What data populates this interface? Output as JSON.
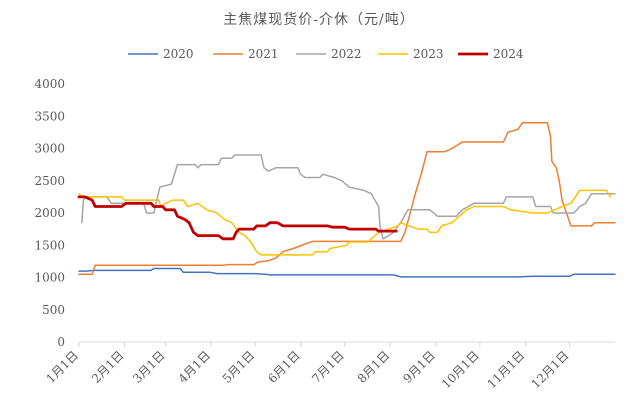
{
  "chart_data": {
    "type": "line",
    "title": "主焦煤现货价-介休（元/吨）",
    "xlabel": "",
    "ylabel": "",
    "ylim": [
      0,
      4000
    ],
    "yticks": [
      "0",
      "500",
      "1000",
      "1500",
      "2000",
      "2500",
      "3000",
      "3500",
      "4000"
    ],
    "x_domain": [
      1,
      366
    ],
    "xticks": [
      {
        "label": "1月1日",
        "day": 1
      },
      {
        "label": "2月1日",
        "day": 32
      },
      {
        "label": "3月1日",
        "day": 60
      },
      {
        "label": "4月1日",
        "day": 91
      },
      {
        "label": "5月1日",
        "day": 121
      },
      {
        "label": "6月1日",
        "day": 152
      },
      {
        "label": "7月1日",
        "day": 182
      },
      {
        "label": "8月1日",
        "day": 213
      },
      {
        "label": "9月1日",
        "day": 244
      },
      {
        "label": "10月1日",
        "day": 274
      },
      {
        "label": "11月1日",
        "day": 305
      },
      {
        "label": "12月1日",
        "day": 335
      }
    ],
    "grid": false,
    "legend": "top",
    "series": [
      {
        "name": "2020",
        "color": "#4472c4",
        "width": 1.5,
        "points": [
          [
            1,
            1100
          ],
          [
            5,
            1100
          ],
          [
            12,
            1110
          ],
          [
            50,
            1110
          ],
          [
            52,
            1140
          ],
          [
            70,
            1140
          ],
          [
            72,
            1080
          ],
          [
            90,
            1080
          ],
          [
            95,
            1060
          ],
          [
            120,
            1060
          ],
          [
            128,
            1050
          ],
          [
            131,
            1040
          ],
          [
            200,
            1040
          ],
          [
            215,
            1040
          ],
          [
            220,
            1010
          ],
          [
            300,
            1010
          ],
          [
            310,
            1020
          ],
          [
            335,
            1020
          ],
          [
            338,
            1050
          ],
          [
            366,
            1050
          ]
        ]
      },
      {
        "name": "2021",
        "color": "#ed7d31",
        "width": 1.5,
        "points": [
          [
            1,
            1050
          ],
          [
            10,
            1050
          ],
          [
            12,
            1190
          ],
          [
            100,
            1190
          ],
          [
            102,
            1200
          ],
          [
            120,
            1200
          ],
          [
            123,
            1240
          ],
          [
            130,
            1260
          ],
          [
            135,
            1300
          ],
          [
            140,
            1400
          ],
          [
            147,
            1450
          ],
          [
            155,
            1520
          ],
          [
            160,
            1560
          ],
          [
            220,
            1560
          ],
          [
            223,
            1700
          ],
          [
            226,
            1950
          ],
          [
            230,
            2300
          ],
          [
            234,
            2600
          ],
          [
            238,
            2950
          ],
          [
            250,
            2950
          ],
          [
            255,
            3000
          ],
          [
            262,
            3100
          ],
          [
            290,
            3100
          ],
          [
            293,
            3250
          ],
          [
            300,
            3300
          ],
          [
            303,
            3400
          ],
          [
            320,
            3400
          ],
          [
            322,
            3200
          ],
          [
            323,
            2800
          ],
          [
            326,
            2700
          ],
          [
            328,
            2500
          ],
          [
            330,
            2200
          ],
          [
            333,
            2000
          ],
          [
            336,
            1800
          ],
          [
            350,
            1800
          ],
          [
            352,
            1850
          ],
          [
            366,
            1850
          ]
        ]
      },
      {
        "name": "2022",
        "color": "#a5a5a5",
        "width": 1.5,
        "points": [
          [
            3,
            1850
          ],
          [
            4,
            2200
          ],
          [
            6,
            2250
          ],
          [
            20,
            2250
          ],
          [
            23,
            2150
          ],
          [
            45,
            2150
          ],
          [
            47,
            2000
          ],
          [
            52,
            2000
          ],
          [
            54,
            2200
          ],
          [
            56,
            2400
          ],
          [
            64,
            2450
          ],
          [
            68,
            2750
          ],
          [
            80,
            2750
          ],
          [
            82,
            2700
          ],
          [
            84,
            2750
          ],
          [
            96,
            2750
          ],
          [
            98,
            2850
          ],
          [
            105,
            2850
          ],
          [
            107,
            2900
          ],
          [
            125,
            2900
          ],
          [
            127,
            2700
          ],
          [
            130,
            2650
          ],
          [
            135,
            2700
          ],
          [
            150,
            2700
          ],
          [
            152,
            2600
          ],
          [
            155,
            2550
          ],
          [
            165,
            2550
          ],
          [
            167,
            2600
          ],
          [
            175,
            2550
          ],
          [
            180,
            2500
          ],
          [
            185,
            2400
          ],
          [
            195,
            2350
          ],
          [
            200,
            2300
          ],
          [
            205,
            2100
          ],
          [
            206,
            1800
          ],
          [
            208,
            1600
          ],
          [
            212,
            1650
          ],
          [
            215,
            1700
          ],
          [
            220,
            1850
          ],
          [
            225,
            2050
          ],
          [
            240,
            2050
          ],
          [
            245,
            1950
          ],
          [
            258,
            1950
          ],
          [
            262,
            2050
          ],
          [
            270,
            2150
          ],
          [
            290,
            2150
          ],
          [
            292,
            2250
          ],
          [
            310,
            2250
          ],
          [
            312,
            2100
          ],
          [
            322,
            2100
          ],
          [
            324,
            2000
          ],
          [
            338,
            2000
          ],
          [
            342,
            2100
          ],
          [
            346,
            2150
          ],
          [
            350,
            2300
          ],
          [
            366,
            2300
          ]
        ]
      },
      {
        "name": "2023",
        "color": "#ffc000",
        "width": 1.5,
        "points": [
          [
            1,
            2300
          ],
          [
            3,
            2250
          ],
          [
            30,
            2250
          ],
          [
            32,
            2200
          ],
          [
            55,
            2200
          ],
          [
            57,
            2100
          ],
          [
            60,
            2150
          ],
          [
            65,
            2200
          ],
          [
            72,
            2200
          ],
          [
            75,
            2100
          ],
          [
            82,
            2150
          ],
          [
            88,
            2050
          ],
          [
            95,
            2000
          ],
          [
            100,
            1900
          ],
          [
            105,
            1850
          ],
          [
            110,
            1700
          ],
          [
            114,
            1650
          ],
          [
            118,
            1550
          ],
          [
            122,
            1400
          ],
          [
            125,
            1350
          ],
          [
            160,
            1350
          ],
          [
            162,
            1400
          ],
          [
            170,
            1400
          ],
          [
            172,
            1450
          ],
          [
            183,
            1500
          ],
          [
            185,
            1550
          ],
          [
            198,
            1550
          ],
          [
            200,
            1600
          ],
          [
            205,
            1700
          ],
          [
            212,
            1750
          ],
          [
            218,
            1800
          ],
          [
            220,
            1850
          ],
          [
            226,
            1800
          ],
          [
            232,
            1750
          ],
          [
            238,
            1750
          ],
          [
            240,
            1700
          ],
          [
            245,
            1700
          ],
          [
            248,
            1800
          ],
          [
            255,
            1850
          ],
          [
            260,
            1950
          ],
          [
            265,
            2050
          ],
          [
            270,
            2100
          ],
          [
            290,
            2100
          ],
          [
            295,
            2050
          ],
          [
            310,
            2000
          ],
          [
            320,
            2000
          ],
          [
            330,
            2100
          ],
          [
            336,
            2150
          ],
          [
            342,
            2350
          ],
          [
            360,
            2350
          ],
          [
            363,
            2250
          ]
        ]
      },
      {
        "name": "2024",
        "color": "#c00000",
        "width": 2.8,
        "points": [
          [
            1,
            2250
          ],
          [
            5,
            2250
          ],
          [
            10,
            2200
          ],
          [
            12,
            2100
          ],
          [
            30,
            2100
          ],
          [
            33,
            2150
          ],
          [
            50,
            2150
          ],
          [
            52,
            2100
          ],
          [
            58,
            2100
          ],
          [
            60,
            2050
          ],
          [
            66,
            2050
          ],
          [
            68,
            1950
          ],
          [
            73,
            1900
          ],
          [
            76,
            1850
          ],
          [
            79,
            1700
          ],
          [
            82,
            1650
          ],
          [
            96,
            1650
          ],
          [
            99,
            1600
          ],
          [
            106,
            1600
          ],
          [
            108,
            1700
          ],
          [
            110,
            1750
          ],
          [
            120,
            1750
          ],
          [
            122,
            1800
          ],
          [
            128,
            1800
          ],
          [
            131,
            1850
          ],
          [
            136,
            1850
          ],
          [
            140,
            1800
          ],
          [
            170,
            1800
          ],
          [
            174,
            1780
          ],
          [
            182,
            1780
          ],
          [
            185,
            1750
          ],
          [
            203,
            1750
          ],
          [
            205,
            1720
          ],
          [
            217,
            1720
          ]
        ]
      }
    ]
  }
}
